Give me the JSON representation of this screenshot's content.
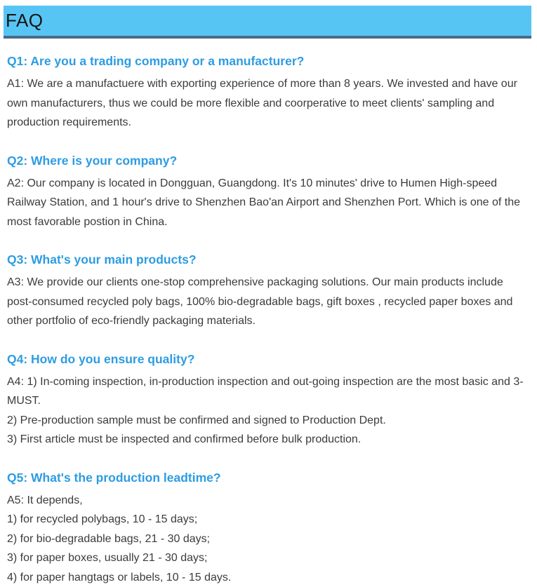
{
  "page": {
    "title": "FAQ"
  },
  "colors": {
    "header_bg": "#57c5f4",
    "header_border": "#4a6a85",
    "question_text": "#2d9ce2",
    "body_text": "#3b3b3b",
    "header_text": "#151515"
  },
  "faq": {
    "items": [
      {
        "question": "Q1: Are you a trading company or a manufacturer?",
        "answer_lines": [
          "A1: We are a manufactuere with exporting experience of more than 8 years. We invested and have our own manufacturers, thus we could be more flexible and coorperative to meet clients' sampling and production requirements."
        ]
      },
      {
        "question": "Q2: Where is your company?",
        "answer_lines": [
          "A2: Our company is located in Dongguan, Guangdong. It's 10 minutes' drive to Humen High-speed Railway Station, and 1 hour's drive to Shenzhen Bao'an Airport and Shenzhen Port. Which is one of the most favorable postion in China."
        ]
      },
      {
        "question": "Q3: What's your main products?",
        "answer_lines": [
          "A3: We provide our clients one-stop comprehensive packaging solutions. Our main products include post-consumed recycled poly bags, 100% bio-degradable bags, gift boxes , recycled paper boxes and other portfolio of eco-friendly packaging materials."
        ]
      },
      {
        "question": "Q4: How do you ensure quality?",
        "answer_lines": [
          "A4: 1) In-coming inspection, in-production inspection and out-going inspection are the most basic and 3-MUST.",
          "2) Pre-production sample must be confirmed and signed to Production Dept.",
          "3) First article must be inspected and confirmed before bulk production."
        ]
      },
      {
        "question": "Q5: What's the production leadtime?",
        "answer_lines": [
          "A5: It depends,",
          "1) for recycled polybags, 10 - 15 days;",
          "2) for bio-degradable bags, 21 - 30 days;",
          "3) for paper boxes, usually 21 - 30 days;",
          "4) for paper hangtags or labels, 10 - 15 days."
        ]
      }
    ]
  }
}
